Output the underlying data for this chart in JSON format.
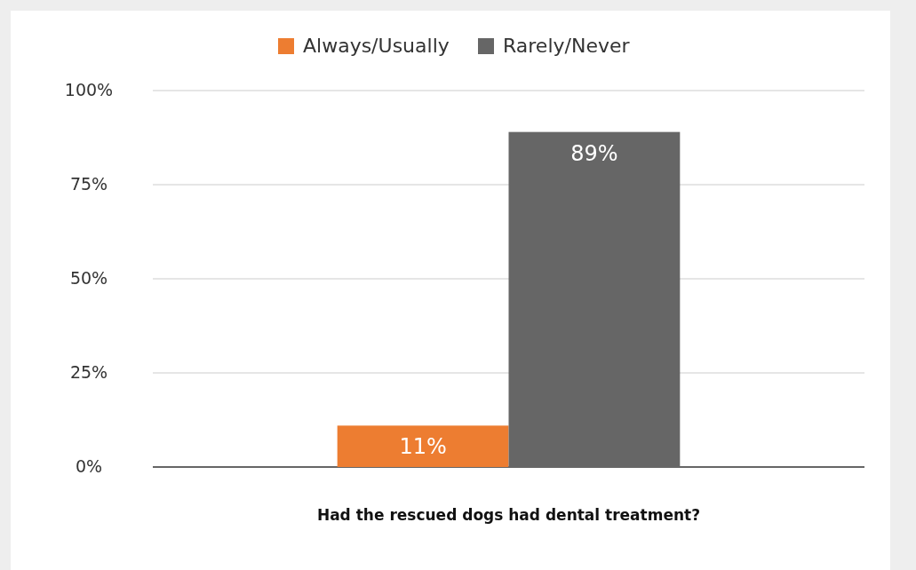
{
  "chart_data": {
    "type": "bar",
    "xlabel": "Had the rescued dogs had dental treatment?",
    "categories": [
      null
    ],
    "series": [
      {
        "name": "Always/Usually",
        "color": "#ed7d31",
        "values": [
          11
        ],
        "value_labels": [
          "11%"
        ]
      },
      {
        "name": "Rarely/Never",
        "color": "#666666",
        "values": [
          89
        ],
        "value_labels": [
          "89%"
        ]
      }
    ],
    "ylim": [
      0,
      100
    ],
    "yticks": [
      {
        "value": 0,
        "label": "0%"
      },
      {
        "value": 25,
        "label": "25%"
      },
      {
        "value": 50,
        "label": "50%"
      },
      {
        "value": 75,
        "label": "75%"
      },
      {
        "value": 100,
        "label": "100%"
      }
    ],
    "grid": "y",
    "legend": "top"
  }
}
